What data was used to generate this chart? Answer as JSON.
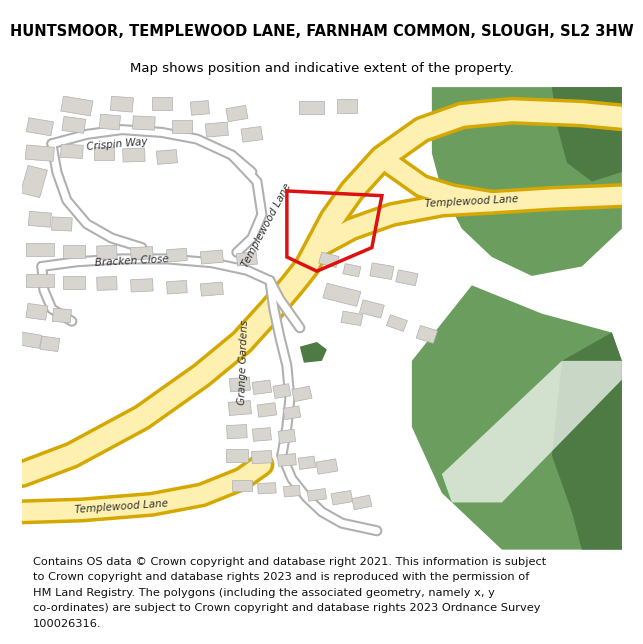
{
  "title_line1": "HUNTSMOOR, TEMPLEWOOD LANE, FARNHAM COMMON, SLOUGH, SL2 3HW",
  "title_line2": "Map shows position and indicative extent of the property.",
  "footer_lines": [
    "Contains OS data © Crown copyright and database right 2021. This information is subject",
    "to Crown copyright and database rights 2023 and is reproduced with the permission of",
    "HM Land Registry. The polygons (including the associated geometry, namely x, y",
    "co-ordinates) are subject to Crown copyright and database rights 2023 Ordnance Survey",
    "100026316."
  ],
  "map_bg": "#ffffff",
  "road_yellow_fill": "#fdf0b0",
  "road_yellow_outline": "#d4a800",
  "road_white_fill": "#ffffff",
  "road_white_outline": "#b0b0b0",
  "green_color": "#6b9e5e",
  "green_dark": "#4e7a44",
  "plot_color": "#dd1111",
  "building_fill": "#d8d4ce",
  "building_outline": "#b0b0b0",
  "water_color": "#aaddee",
  "text_dark": "#333333",
  "title_fontsize": 10.5,
  "subtitle_fontsize": 9.5,
  "footer_fontsize": 8.2,
  "label_fontsize": 7.5
}
